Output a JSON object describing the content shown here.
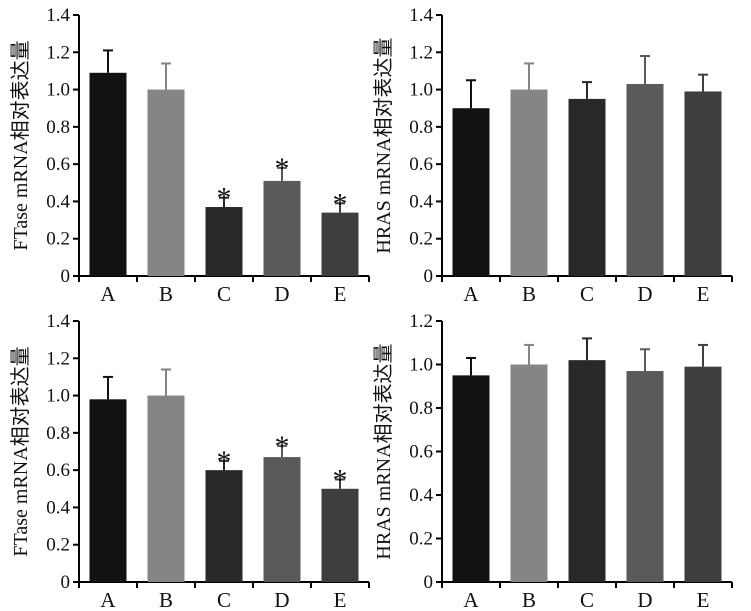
{
  "chart_data": [
    {
      "type": "bar",
      "title": "",
      "xlabel": "",
      "ylabel": "FTase mRNA相对表达量",
      "categories": [
        "A",
        "B",
        "C",
        "D",
        "E"
      ],
      "values": [
        1.09,
        1.0,
        0.37,
        0.51,
        0.34
      ],
      "errors": [
        0.12,
        0.14,
        0.05,
        0.07,
        0.05
      ],
      "significance": [
        "",
        "",
        "*",
        "*",
        "*"
      ],
      "ylim": [
        0,
        1.4
      ],
      "yticks": [
        "0",
        "0.2",
        "0.4",
        "0.6",
        "0.8",
        "1.0",
        "1.2",
        "1.4"
      ],
      "bar_colors": [
        "#111111",
        "#858585",
        "#282828",
        "#5a5a5a",
        "#3e3e3e"
      ],
      "grid": false
    },
    {
      "type": "bar",
      "title": "",
      "xlabel": "",
      "ylabel": "HRAS mRNA相对表达量",
      "categories": [
        "A",
        "B",
        "C",
        "D",
        "E"
      ],
      "values": [
        0.9,
        1.0,
        0.95,
        1.03,
        0.99
      ],
      "errors": [
        0.15,
        0.14,
        0.09,
        0.15,
        0.09
      ],
      "significance": [
        "",
        "",
        "",
        "",
        ""
      ],
      "ylim": [
        0,
        1.4
      ],
      "yticks": [
        "0",
        "0.2",
        "0.4",
        "0.6",
        "0.8",
        "1.0",
        "1.2",
        "1.4"
      ],
      "bar_colors": [
        "#111111",
        "#858585",
        "#282828",
        "#5a5a5a",
        "#3e3e3e"
      ],
      "grid": false
    },
    {
      "type": "bar",
      "title": "",
      "xlabel": "",
      "ylabel": "FTase mRNA相对表达量",
      "categories": [
        "A",
        "B",
        "C",
        "D",
        "E"
      ],
      "values": [
        0.98,
        1.0,
        0.6,
        0.67,
        0.5
      ],
      "errors": [
        0.12,
        0.14,
        0.05,
        0.06,
        0.05
      ],
      "significance": [
        "",
        "",
        "*",
        "*",
        "*"
      ],
      "ylim": [
        0,
        1.4
      ],
      "yticks": [
        "0",
        "0.2",
        "0.4",
        "0.6",
        "0.8",
        "1.0",
        "1.2",
        "1.4"
      ],
      "bar_colors": [
        "#111111",
        "#858585",
        "#282828",
        "#5a5a5a",
        "#3e3e3e"
      ],
      "grid": false
    },
    {
      "type": "bar",
      "title": "",
      "xlabel": "",
      "ylabel": "HRAS mRNA相对表达量",
      "categories": [
        "A",
        "B",
        "C",
        "D",
        "E"
      ],
      "values": [
        0.95,
        1.0,
        1.02,
        0.97,
        0.99
      ],
      "errors": [
        0.08,
        0.09,
        0.1,
        0.1,
        0.1
      ],
      "significance": [
        "",
        "",
        "",
        "",
        ""
      ],
      "ylim": [
        0,
        1.2
      ],
      "yticks": [
        "0",
        "0.2",
        "0.4",
        "0.6",
        "0.8",
        "1.0",
        "1.2"
      ],
      "bar_colors": [
        "#111111",
        "#858585",
        "#282828",
        "#5a5a5a",
        "#3e3e3e"
      ],
      "grid": false
    }
  ]
}
